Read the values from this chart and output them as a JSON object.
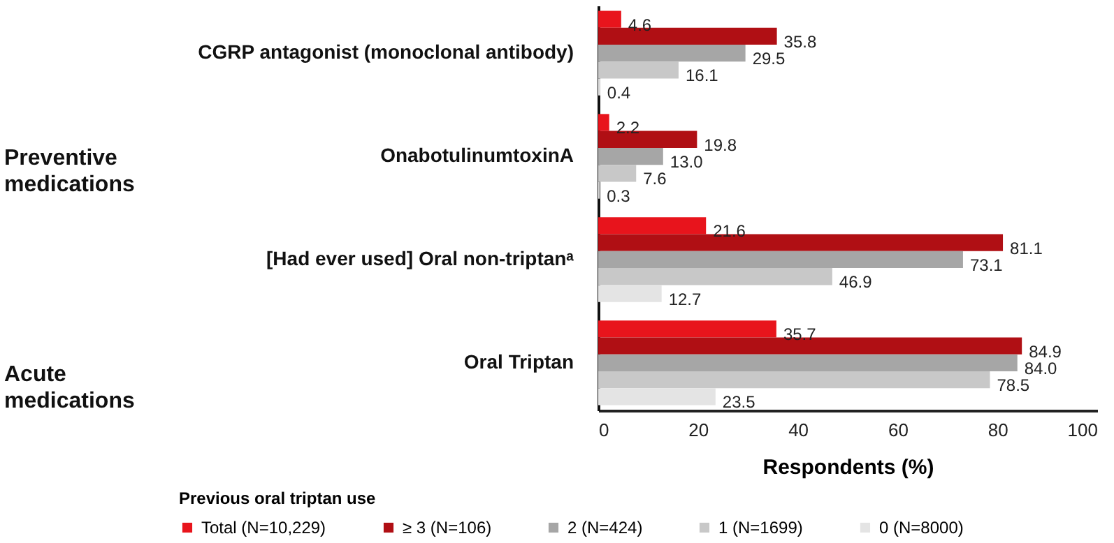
{
  "chart_data": {
    "type": "bar",
    "orientation": "horizontal",
    "xlabel": "Respondents (%)",
    "legend_title": "Previous oral triptan use",
    "legend": "bottom",
    "categories": [
      "CGRP antagonist (monoclonal antibody)",
      "OnabotulinumtoxinA",
      "[Had ever used] Oral non-triptanᵃ",
      "Oral Triptan"
    ],
    "series": [
      {
        "name": "Total (N=10,229)",
        "color": "#e8141c",
        "values": [
          4.6,
          2.2,
          21.6,
          35.7
        ],
        "value_labels": [
          "4.6",
          "2.2",
          "21.6",
          "35.7"
        ]
      },
      {
        "name": "≥ 3 (N=106)",
        "color": "#b00f14",
        "values": [
          35.8,
          19.8,
          81.1,
          84.9
        ],
        "value_labels": [
          "35.8",
          "19.8",
          "81.1",
          "84.9"
        ]
      },
      {
        "name": "2 (N=424)",
        "color": "#a6a6a6",
        "values": [
          29.5,
          13.0,
          73.1,
          84.0
        ],
        "value_labels": [
          "29.5",
          "13.0",
          "73.1",
          "84.0"
        ]
      },
      {
        "name": "1 (N=1699)",
        "color": "#c8c8c8",
        "values": [
          16.1,
          7.6,
          46.9,
          78.5
        ],
        "value_labels": [
          "16.1",
          "7.6",
          "46.9",
          "78.5"
        ]
      },
      {
        "name": "0 (N=8000)",
        "color": "#e4e4e4",
        "values": [
          0.4,
          0.3,
          12.7,
          23.5
        ],
        "value_labels": [
          "0.4",
          "0.3",
          "12.7",
          "23.5"
        ]
      }
    ],
    "xlim": [
      0,
      100
    ],
    "xticks": [
      0,
      20,
      40,
      60,
      80,
      100
    ],
    "annotations": [
      "Preventive medications",
      "Acute medications"
    ]
  }
}
